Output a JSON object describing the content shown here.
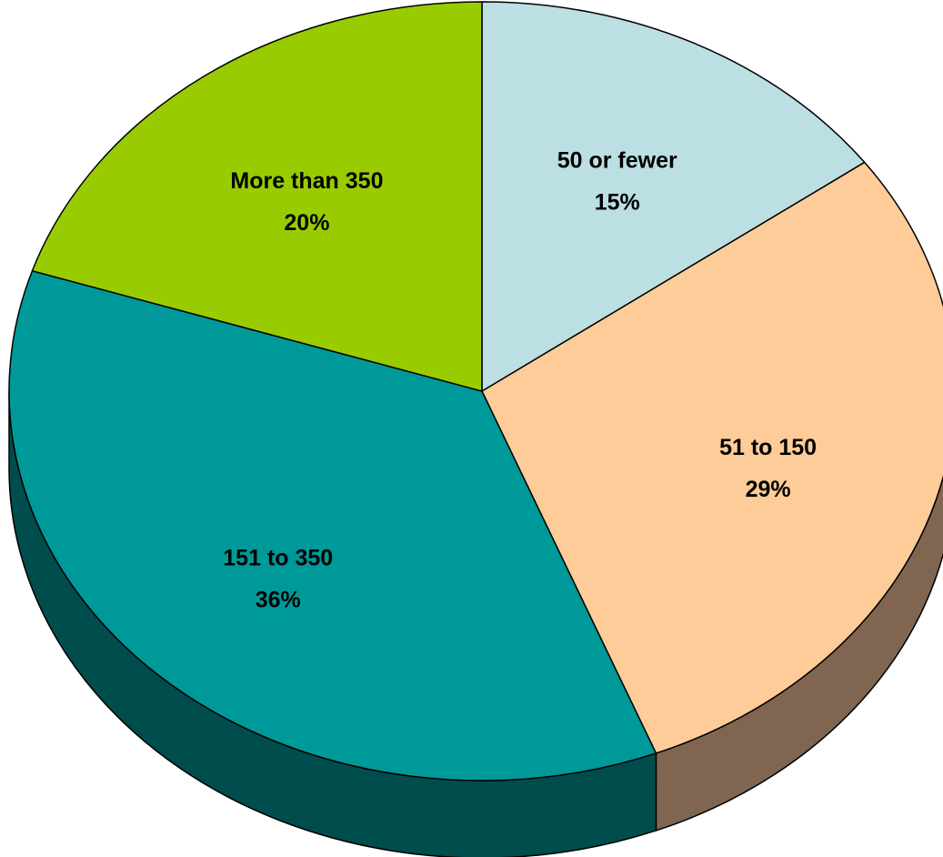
{
  "chart_data": {
    "type": "pie",
    "title": "",
    "style": "3d",
    "start_angle_deg": 0,
    "direction": "clockwise",
    "slices": [
      {
        "label": "50 or fewer",
        "value": 15,
        "value_label": "15%",
        "color": "#BBDFE3",
        "side_color": "#7A9EA2"
      },
      {
        "label": "51 to 150",
        "value": 29,
        "value_label": "29%",
        "color": "#FDCC99",
        "side_color": "#806650"
      },
      {
        "label": "151 to 350",
        "value": 36,
        "value_label": "36%",
        "color": "#009999",
        "side_color": "#004D4D"
      },
      {
        "label": "More than 350",
        "value": 20,
        "value_label": "20%",
        "color": "#99CC00",
        "side_color": "#4D6600"
      }
    ],
    "outline_color": "#000000"
  }
}
